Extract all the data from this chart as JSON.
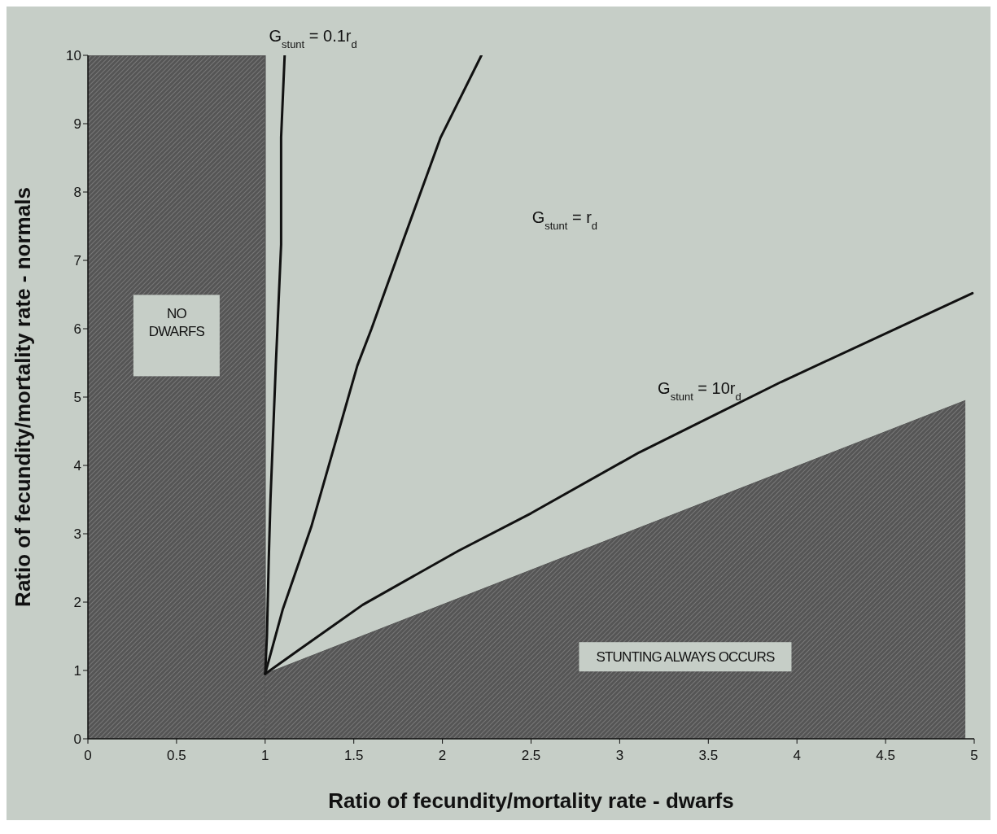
{
  "chart_data": {
    "type": "line",
    "xlabel": "Ratio of fecundity/mortality rate - dwarfs",
    "ylabel": "Ratio of fecundity/mortality rate - normals",
    "xlim": [
      0,
      5
    ],
    "xticks": [
      0,
      0.5,
      1,
      1.5,
      2,
      2.5,
      3,
      3.5,
      4,
      4.5,
      5
    ],
    "ylim": [
      0,
      10
    ],
    "yticks": [
      0,
      1,
      2,
      3,
      4,
      5,
      6,
      7,
      8,
      9,
      10
    ],
    "grid": false,
    "legend": false,
    "marker": "none",
    "line_style": "solid",
    "series": [
      {
        "type": "area",
        "name": "STUNTING ALWAYS OCCURS",
        "color": "#555555",
        "x": [
          1,
          4.95
        ],
        "values": [
          0.95,
          4.95
        ]
      },
      {
        "color": "#111111",
        "x": [
          1,
          1.01,
          1.02,
          1.03,
          1.06,
          1.09,
          1.09,
          1.11
        ],
        "values": [
          0.95,
          1.5,
          2.6,
          3.5,
          5.46,
          7.23,
          8.8,
          10
        ]
      },
      {
        "color": "#111111",
        "x": [
          1,
          1.1,
          1.26,
          1.52,
          1.6,
          1.77,
          1.99,
          2.22
        ],
        "values": [
          0.95,
          1.9,
          3.1,
          5.46,
          6,
          7.23,
          8.8,
          10
        ]
      },
      {
        "color": "#111111",
        "x": [
          1,
          1.19,
          1.55,
          2.09,
          2.5,
          3.11,
          3.91,
          4.99
        ],
        "values": [
          0.95,
          1.3,
          1.96,
          2.75,
          3.3,
          4.19,
          5.22,
          6.52
        ]
      }
    ],
    "bands": [
      {
        "axis": "x",
        "from": 0,
        "to": 1,
        "label": "NO DWARFS",
        "color": "#555555"
      }
    ],
    "annotations": [
      "G$_{stunt}$ = 0.1r$_{d}$",
      "G$_{stunt}$ = r$_{d}$",
      "G$_{stunt}$ = 10r$_{d}$"
    ]
  }
}
